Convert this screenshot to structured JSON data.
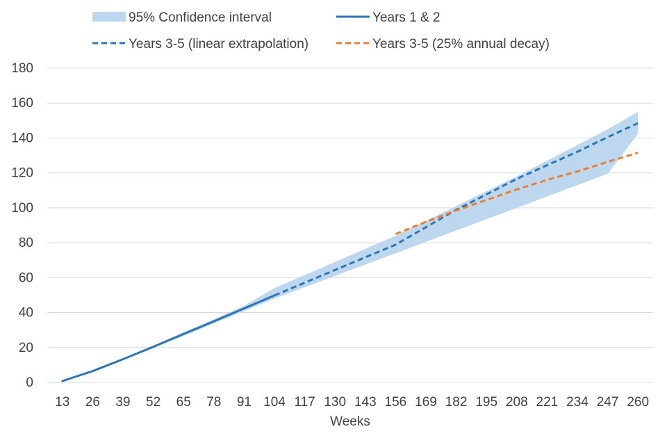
{
  "chart_data": {
    "type": "line",
    "title": "",
    "xlabel": "Weeks",
    "ylabel": "",
    "x": [
      13,
      26,
      39,
      52,
      65,
      78,
      91,
      104,
      117,
      130,
      143,
      156,
      169,
      182,
      195,
      208,
      221,
      234,
      247,
      260
    ],
    "x_tick_labels": [
      "13",
      "26",
      "39",
      "52",
      "65",
      "78",
      "91",
      "104",
      "117",
      "130",
      "143",
      "156",
      "169",
      "182",
      "195",
      "208",
      "221",
      "234",
      "247",
      "260"
    ],
    "ylim": [
      0,
      180
    ],
    "y_ticks": [
      0,
      20,
      40,
      60,
      80,
      100,
      120,
      140,
      160,
      180
    ],
    "grid": true,
    "legend_position": "top",
    "series": [
      {
        "name": "95% Confidence interval",
        "kind": "band",
        "color": "#bdd7ee",
        "x": [
          13,
          26,
          39,
          52,
          65,
          78,
          91,
          104,
          117,
          130,
          143,
          156,
          169,
          182,
          195,
          208,
          221,
          234,
          247,
          260
        ],
        "lower": [
          0.8,
          6.3,
          12.9,
          19.8,
          26.7,
          33.8,
          40.9,
          48,
          54.5,
          61,
          67.5,
          74,
          80.5,
          87,
          93.5,
          100,
          106.5,
          113,
          119.5,
          142.5
        ],
        "upper": [
          0.8,
          6.7,
          13.7,
          21,
          28.7,
          36.2,
          43.9,
          54,
          61.5,
          69,
          76.5,
          84,
          92.5,
          101,
          109.5,
          118,
          127,
          136,
          145,
          155
        ]
      },
      {
        "name": "Years 1 & 2",
        "kind": "solid",
        "color": "#2e75b6",
        "x": [
          13,
          26,
          39,
          52,
          65,
          78,
          91,
          104
        ],
        "values": [
          0.8,
          6.5,
          13.3,
          20.4,
          27.7,
          35,
          42.4,
          49.8
        ]
      },
      {
        "name": "Years 3-5 (linear extrapolation)",
        "kind": "dashed",
        "color": "#2e75b6",
        "x": [
          104,
          117,
          130,
          143,
          156,
          169,
          182,
          195,
          208,
          221,
          234,
          247,
          260
        ],
        "values": [
          49.8,
          57.1,
          64.4,
          71.7,
          78.9,
          88.9,
          98.9,
          107.7,
          116.6,
          124.4,
          132.1,
          140.5,
          148.5
        ]
      },
      {
        "name": "Years 3-5 (25% annual decay)",
        "kind": "dashed",
        "color": "#ed7d31",
        "x": [
          156,
          169,
          182,
          195,
          208,
          221,
          234,
          247,
          260
        ],
        "values": [
          85,
          92,
          98.5,
          104.5,
          110.5,
          116,
          120.8,
          126.3,
          131.5
        ]
      }
    ]
  }
}
